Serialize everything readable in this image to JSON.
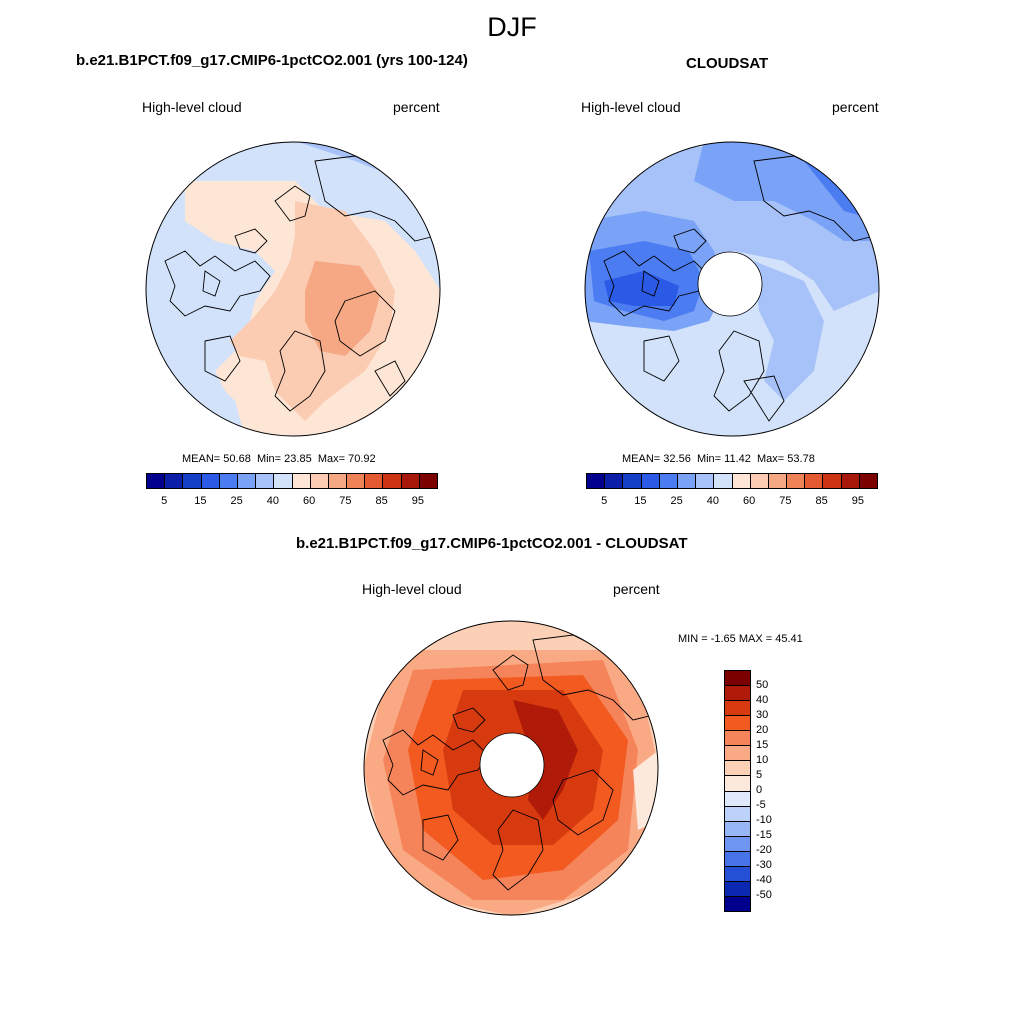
{
  "figure": {
    "season": "DJF"
  },
  "panels": [
    {
      "title": "b.e21.B1PCT.f09_g17.CMIP6-1pctCO2.001 (yrs 100-124)",
      "variable": "High-level cloud",
      "units": "percent",
      "stats": {
        "mean_label": "MEAN=",
        "mean": "50.68",
        "min_label": "Min=",
        "min": "23.85",
        "max_label": "Max=",
        "max": "70.92"
      },
      "colorbar": {
        "colors": [
          "#00008c",
          "#0a1ea8",
          "#1440c8",
          "#2a5ae6",
          "#4c7cf2",
          "#7aa2f6",
          "#a6c2f8",
          "#d2e2fb",
          "#fde6d6",
          "#fbcbb2",
          "#f6a884",
          "#f08258",
          "#e45a30",
          "#cc3414",
          "#a8180a",
          "#7d0000"
        ],
        "tick_labels": [
          "5",
          "15",
          "25",
          "40",
          "60",
          "75",
          "85",
          "95"
        ]
      }
    },
    {
      "title": "CLOUDSAT",
      "variable": "High-level cloud",
      "units": "percent",
      "stats": {
        "mean_label": "MEAN=",
        "mean": "32.56",
        "min_label": "Min=",
        "min": "11.42",
        "max_label": "Max=",
        "max": "53.78"
      },
      "colorbar": {
        "colors": [
          "#00008c",
          "#0a1ea8",
          "#1440c8",
          "#2a5ae6",
          "#4c7cf2",
          "#7aa2f6",
          "#a6c2f8",
          "#d2e2fb",
          "#fde6d6",
          "#fbcbb2",
          "#f6a884",
          "#f08258",
          "#e45a30",
          "#cc3414",
          "#a8180a",
          "#7d0000"
        ],
        "tick_labels": [
          "5",
          "15",
          "25",
          "40",
          "60",
          "75",
          "85",
          "95"
        ]
      }
    },
    {
      "title": "b.e21.B1PCT.f09_g17.CMIP6-1pctCO2.001 - CLOUDSAT",
      "variable": "High-level cloud",
      "units": "percent",
      "stats": {
        "min_label": "MIN =",
        "min": "-1.65",
        "max_label": "MAX =",
        "max": "45.41"
      },
      "colorbar": {
        "colors": [
          "#7d0000",
          "#b01a08",
          "#d83a10",
          "#f25a20",
          "#f6845a",
          "#f9aa84",
          "#fcd0b6",
          "#fde8dc",
          "#dfe9fb",
          "#bcd2fa",
          "#97b6f6",
          "#6e96f0",
          "#4673e8",
          "#2450d6",
          "#0a28b0",
          "#00008c"
        ],
        "tick_labels": [
          "50",
          "40",
          "30",
          "20",
          "15",
          "10",
          "5",
          "0",
          "-5",
          "-10",
          "-15",
          "-20",
          "-30",
          "-40",
          "-50"
        ]
      }
    }
  ]
}
